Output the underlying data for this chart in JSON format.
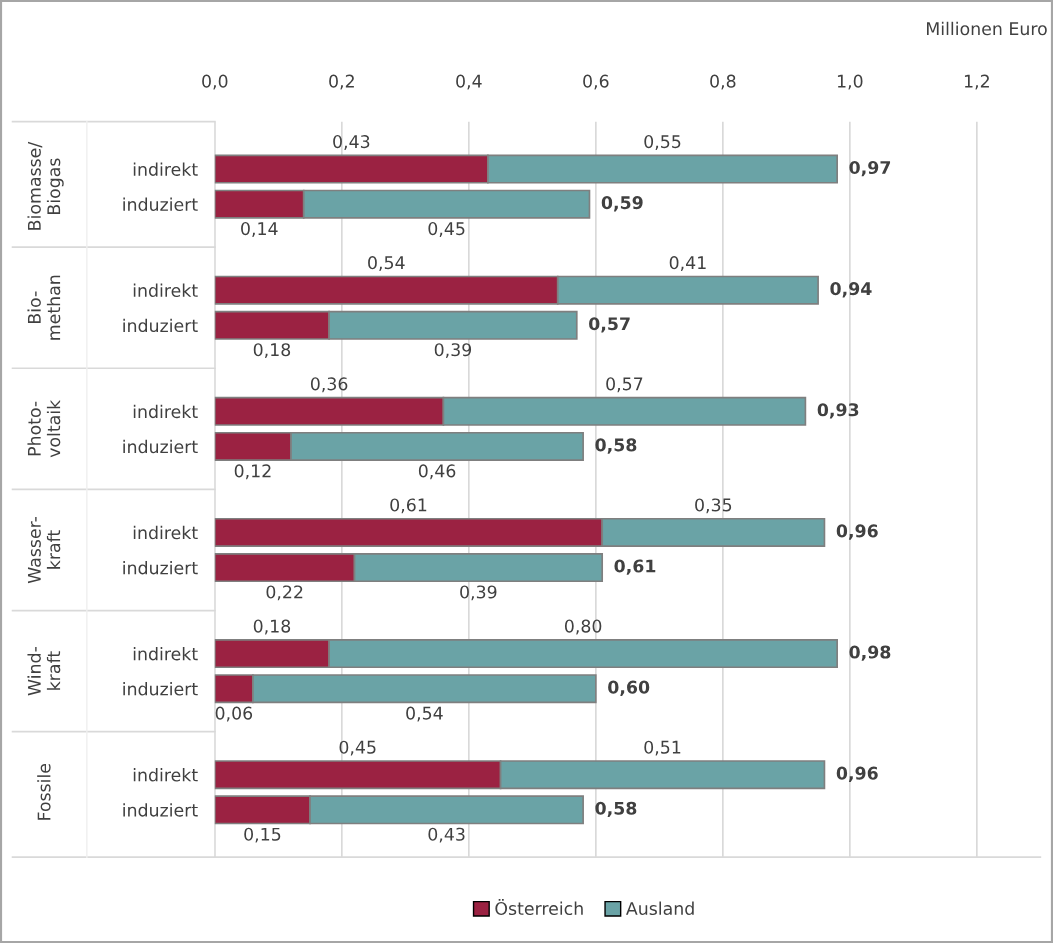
{
  "chart_data": {
    "type": "bar",
    "orientation": "horizontal",
    "stacked": true,
    "categories": [
      "indirekt",
      "induziert",
      "indirekt",
      "induziert",
      "indirekt",
      "induziert",
      "indirekt",
      "induziert",
      "indirekt",
      "induziert",
      "indirekt",
      "induziert"
    ],
    "annotations": [
      "Biomasse/\nBiogas",
      "Bio-\nmethan",
      "Photo-\nvoltaik",
      "Wasser-\nkraft",
      "Wind-\nkraft",
      "Fossile"
    ],
    "xlabel": "Millionen Euro",
    "xlim": [
      0,
      1.3
    ],
    "xticks": [
      {
        "value": 0,
        "label": "0,0"
      },
      {
        "value": 0.2,
        "label": "0,2"
      },
      {
        "value": 0.4,
        "label": "0,4"
      },
      {
        "value": 0.6,
        "label": "0,6"
      },
      {
        "value": 0.8,
        "label": "0,8"
      },
      {
        "value": 1.0,
        "label": "1,0"
      },
      {
        "value": 1.2,
        "label": "1,2"
      }
    ],
    "grid": "x",
    "legend": "bottom",
    "series": [
      {
        "name": "Österreich",
        "color": "#9b2242",
        "values": [
          0.43,
          0.14,
          0.54,
          0.18,
          0.36,
          0.12,
          0.61,
          0.22,
          0.18,
          0.06,
          0.45,
          0.15
        ],
        "value_labels": [
          "0,43",
          "0,14",
          "0,54",
          "0,18",
          "0,36",
          "0,12",
          "0,61",
          "0,22",
          "0,18",
          "0,06",
          "0,45",
          "0,15"
        ]
      },
      {
        "name": "Ausland",
        "color": "#6aa3a6",
        "values": [
          0.55,
          0.45,
          0.41,
          0.39,
          0.57,
          0.46,
          0.35,
          0.39,
          0.8,
          0.54,
          0.51,
          0.43
        ],
        "value_labels": [
          "0,55",
          "0,45",
          "0,41",
          "0,39",
          "0,57",
          "0,46",
          "0,35",
          "0,39",
          "0,80",
          "0,54",
          "0,51",
          "0,43"
        ]
      }
    ],
    "totals": [
      "0,97",
      "0,59",
      "0,94",
      "0,57",
      "0,93",
      "0,58",
      "0,96",
      "0,61",
      "0,98",
      "0,60",
      "0,96",
      "0,58"
    ]
  }
}
